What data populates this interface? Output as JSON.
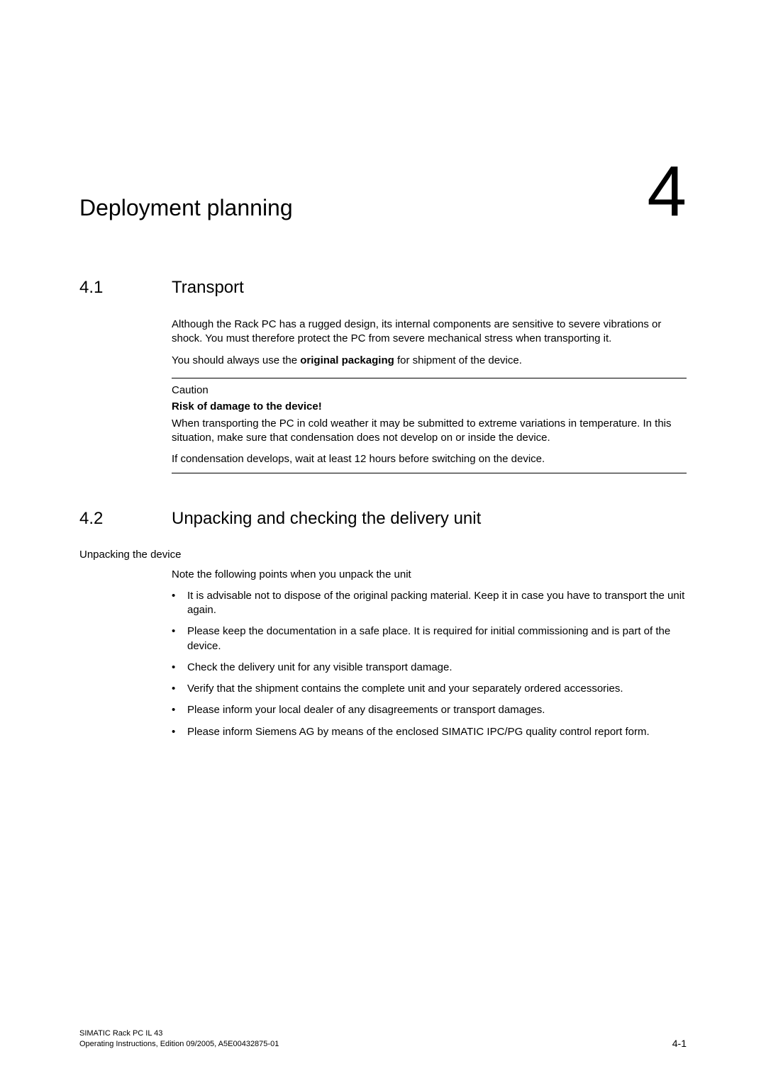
{
  "chapter": {
    "title": "Deployment planning",
    "number": "4"
  },
  "section1": {
    "number": "4.1",
    "title": "Transport",
    "para1": "Although the Rack PC has a rugged design, its internal components are sensitive to severe vibrations or shock. You must therefore protect the PC from severe mechanical stress when transporting it.",
    "para2_pre": "You should always use the ",
    "para2_bold": "original packaging",
    "para2_post": " for shipment of the device.",
    "caution": {
      "label": "Caution",
      "heading": "Risk of damage to the device!",
      "p1": "When transporting the PC in cold weather it may be submitted to extreme variations in temperature. In this situation, make sure that condensation does not develop on or inside the device.",
      "p2": "If condensation develops, wait at least 12 hours before switching on the device."
    }
  },
  "section2": {
    "number": "4.2",
    "title": "Unpacking and checking the delivery unit",
    "subhead": "Unpacking the device",
    "lead": "Note the following points when you unpack the unit",
    "bullets": [
      "It is advisable not to dispose of the original packing material. Keep it in case you have to transport the unit again.",
      "Please keep the documentation in a safe place. It is required for initial commissioning and is part of the device.",
      "Check the delivery unit for any visible transport damage.",
      "Verify that the shipment contains the complete unit and your separately ordered accessories.",
      "Please inform your local dealer of any disagreements or transport damages.",
      "Please inform Siemens AG by means of the enclosed SIMATIC IPC/PG quality control report form."
    ]
  },
  "footer": {
    "line1": "SIMATIC Rack PC IL 43",
    "line2": "Operating Instructions, Edition 09/2005, A5E00432875-01",
    "page": "4-1"
  }
}
